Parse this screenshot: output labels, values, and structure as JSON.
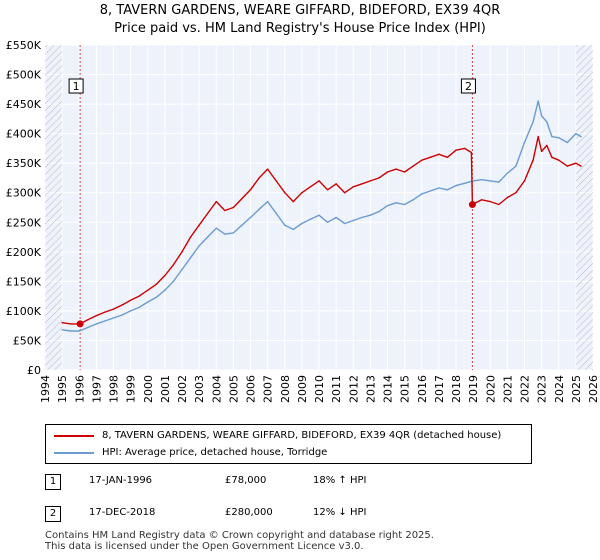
{
  "title_line1": "8, TAVERN GARDENS, WEARE GIFFARD, BIDEFORD, EX39 4QR",
  "title_line2": "Price paid vs. HM Land Registry's House Price Index (HPI)",
  "colors": {
    "red": "#cc0000",
    "blue": "#6a9bd1",
    "bg": "#eef2fb",
    "grid": "#ffffff"
  },
  "chart_data": {
    "type": "line",
    "title": "8, TAVERN GARDENS, WEARE GIFFARD, BIDEFORD, EX39 4QR — Price paid vs. HM Land Registry's House Price Index (HPI)",
    "xlim": [
      1994,
      2026
    ],
    "ylim": [
      0,
      550000
    ],
    "y_ticks": [
      0,
      50000,
      100000,
      150000,
      200000,
      250000,
      300000,
      350000,
      400000,
      450000,
      500000,
      550000
    ],
    "y_tick_labels": [
      "£0",
      "£50K",
      "£100K",
      "£150K",
      "£200K",
      "£250K",
      "£300K",
      "£350K",
      "£400K",
      "£450K",
      "£500K",
      "£550K"
    ],
    "x_ticks": [
      1994,
      1995,
      1996,
      1997,
      1998,
      1999,
      2000,
      2001,
      2002,
      2003,
      2004,
      2005,
      2006,
      2007,
      2008,
      2009,
      2010,
      2011,
      2012,
      2013,
      2014,
      2015,
      2016,
      2017,
      2018,
      2019,
      2020,
      2021,
      2022,
      2023,
      2024,
      2025,
      2026
    ],
    "x_tick_labels": [
      "1994",
      "1995",
      "1996",
      "1997",
      "1998",
      "1999",
      "2000",
      "2001",
      "2002",
      "2003",
      "2004",
      "2005",
      "2006",
      "2007",
      "2008",
      "2009",
      "2010",
      "2011",
      "2012",
      "2013",
      "2014",
      "2015",
      "2016",
      "2017",
      "2018",
      "2019",
      "2020",
      "2021",
      "2022",
      "2023",
      "2024",
      "2025",
      "2026"
    ],
    "hatched_regions": [
      [
        1994,
        1995
      ],
      [
        2025,
        2026
      ]
    ],
    "series": [
      {
        "name": "8, TAVERN GARDENS, WEARE GIFFARD, BIDEFORD, EX39 4QR (detached house)",
        "color": "#cc0000",
        "x": [
          1995.0,
          1995.5,
          1996.05,
          1996.5,
          1997.0,
          1997.5,
          1998.0,
          1998.5,
          1999.0,
          1999.5,
          2000.0,
          2000.5,
          2001.0,
          2001.5,
          2002.0,
          2002.5,
          2003.0,
          2003.5,
          2004.0,
          2004.5,
          2005.0,
          2005.5,
          2006.0,
          2006.5,
          2007.0,
          2007.5,
          2008.0,
          2008.5,
          2009.0,
          2009.5,
          2010.0,
          2010.5,
          2011.0,
          2011.5,
          2012.0,
          2012.5,
          2013.0,
          2013.5,
          2014.0,
          2014.5,
          2015.0,
          2015.5,
          2016.0,
          2016.5,
          2017.0,
          2017.5,
          2018.0,
          2018.5,
          2018.9,
          2018.96,
          2019.5,
          2020.0,
          2020.5,
          2021.0,
          2021.5,
          2022.0,
          2022.5,
          2022.8,
          2023.0,
          2023.3,
          2023.6,
          2024.0,
          2024.5,
          2025.0,
          2025.3
        ],
        "values": [
          80000,
          78000,
          78000,
          85000,
          92000,
          98000,
          103000,
          110000,
          118000,
          125000,
          135000,
          145000,
          160000,
          178000,
          200000,
          225000,
          245000,
          265000,
          285000,
          270000,
          275000,
          290000,
          305000,
          325000,
          340000,
          320000,
          300000,
          285000,
          300000,
          310000,
          320000,
          305000,
          315000,
          300000,
          310000,
          315000,
          320000,
          325000,
          335000,
          340000,
          335000,
          345000,
          355000,
          360000,
          365000,
          360000,
          372000,
          375000,
          368000,
          280000,
          288000,
          285000,
          280000,
          292000,
          300000,
          320000,
          355000,
          395000,
          370000,
          380000,
          360000,
          355000,
          345000,
          350000,
          345000
        ]
      },
      {
        "name": "HPI: Average price, detached house, Torridge",
        "color": "#6a9bd1",
        "x": [
          1995.0,
          1995.5,
          1996.0,
          1996.5,
          1997.0,
          1997.5,
          1998.0,
          1998.5,
          1999.0,
          1999.5,
          2000.0,
          2000.5,
          2001.0,
          2001.5,
          2002.0,
          2002.5,
          2003.0,
          2003.5,
          2004.0,
          2004.5,
          2005.0,
          2005.5,
          2006.0,
          2006.5,
          2007.0,
          2007.5,
          2008.0,
          2008.5,
          2009.0,
          2009.5,
          2010.0,
          2010.5,
          2011.0,
          2011.5,
          2012.0,
          2012.5,
          2013.0,
          2013.5,
          2014.0,
          2014.5,
          2015.0,
          2015.5,
          2016.0,
          2016.5,
          2017.0,
          2017.5,
          2018.0,
          2018.5,
          2019.0,
          2019.5,
          2020.0,
          2020.5,
          2021.0,
          2021.5,
          2022.0,
          2022.5,
          2022.8,
          2023.0,
          2023.3,
          2023.6,
          2024.0,
          2024.5,
          2025.0,
          2025.3
        ],
        "values": [
          68000,
          66000,
          66000,
          72000,
          78000,
          83000,
          88000,
          93000,
          100000,
          106000,
          115000,
          123000,
          135000,
          150000,
          170000,
          190000,
          210000,
          225000,
          240000,
          230000,
          232000,
          245000,
          258000,
          272000,
          285000,
          265000,
          245000,
          238000,
          248000,
          255000,
          262000,
          250000,
          258000,
          248000,
          253000,
          258000,
          262000,
          268000,
          278000,
          283000,
          280000,
          288000,
          298000,
          303000,
          308000,
          305000,
          312000,
          316000,
          320000,
          322000,
          320000,
          318000,
          333000,
          345000,
          385000,
          420000,
          455000,
          430000,
          420000,
          395000,
          393000,
          385000,
          400000,
          395000
        ]
      }
    ],
    "annotations": [
      {
        "label": "1",
        "x": 1996.05,
        "value": 78000
      },
      {
        "label": "2",
        "x": 2018.96,
        "value": 280000
      }
    ]
  },
  "legend": {
    "red_label": "8, TAVERN GARDENS, WEARE GIFFARD, BIDEFORD, EX39 4QR (detached house)",
    "blue_label": "HPI: Average price, detached house, Torridge"
  },
  "sales": [
    {
      "num": "1",
      "date": "17-JAN-1996",
      "price": "£78,000",
      "hpi": "18% ↑ HPI"
    },
    {
      "num": "2",
      "date": "17-DEC-2018",
      "price": "£280,000",
      "hpi": "12% ↓ HPI"
    }
  ],
  "footer_line1": "Contains HM Land Registry data © Crown copyright and database right 2025.",
  "footer_line2": "This data is licensed under the Open Government Licence v3.0."
}
